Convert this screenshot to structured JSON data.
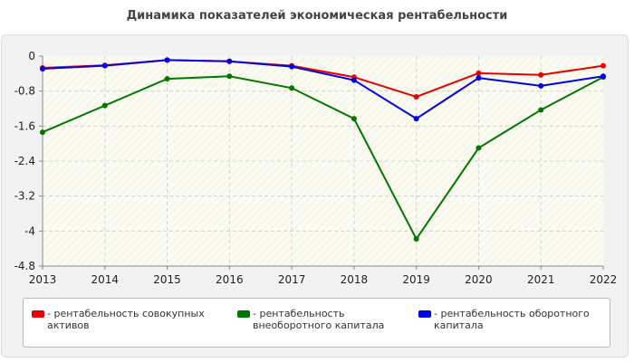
{
  "title": "Динамика показателей экономическая рентабельности",
  "chart_data": {
    "type": "line",
    "x": [
      "2013",
      "2014",
      "2015",
      "2016",
      "2017",
      "2018",
      "2019",
      "2020",
      "2021",
      "2022"
    ],
    "ylim": [
      -4.8,
      0
    ],
    "yticks": [
      "0",
      "-0.8",
      "-1.6",
      "-2.4",
      "-3.2",
      "-4",
      "-4.8"
    ],
    "ytick_values": [
      0,
      -0.8,
      -1.6,
      -2.4,
      -3.2,
      -4,
      -4.8
    ],
    "grid": true,
    "legend_position": "bottom",
    "series": [
      {
        "name": "- рентабельность совокупных активов",
        "color": "#e60000",
        "values": [
          -0.27,
          -0.21,
          -0.09,
          -0.12,
          -0.22,
          -0.48,
          -0.93,
          -0.39,
          -0.43,
          -0.22
        ]
      },
      {
        "name": "- рентабельность внеоборотного капитала",
        "color": "#007800",
        "values": [
          -1.74,
          -1.13,
          -0.52,
          -0.46,
          -0.73,
          -1.43,
          -4.18,
          -2.1,
          -1.23,
          -0.48
        ]
      },
      {
        "name": "- рентабельность оборотного капитала",
        "color": "#0000e6",
        "values": [
          -0.29,
          -0.22,
          -0.09,
          -0.12,
          -0.24,
          -0.55,
          -1.43,
          -0.5,
          -0.68,
          -0.46
        ]
      }
    ]
  }
}
